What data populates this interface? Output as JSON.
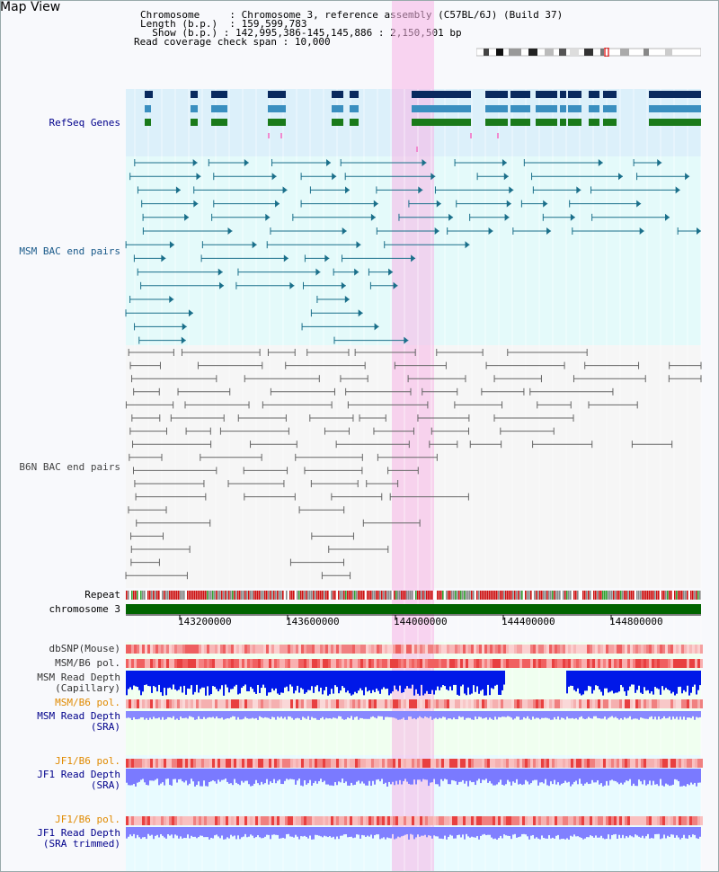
{
  "title": "Map View",
  "header": {
    "chromosome_label": "Chromosome",
    "chromosome_value": "Chromosome 3, reference assembly (C57BL/6J) (Build 37)",
    "length_label": "Length (b.p.)",
    "length_value": "159,599,783",
    "show_label": "Show (b.p.)",
    "show_value": "142,995,386-145,145,886 : 2,150,501 bp",
    "coverage_label": "Read coverage check span",
    "coverage_value": "10,000"
  },
  "tracks": {
    "refseq": "RefSeq Genes",
    "msm_bac": "MSM BAC end pairs",
    "b6n_bac": "B6N BAC end pairs",
    "repeat": "Repeat",
    "chromosome": "chromosome 3",
    "dbsnp": "dbSNP(Mouse)",
    "msm_b6_pol_1": "MSM/B6 pol.",
    "msm_read_depth_cap_1": "MSM Read Depth",
    "msm_read_depth_cap_2": "(Capillary)",
    "msm_b6_pol_2": "MSM/B6 pol.",
    "msm_read_depth_sra_1": "MSM Read Depth",
    "msm_read_depth_sra_2": "(SRA)",
    "jf1_b6_pol_1": "JF1/B6 pol.",
    "jf1_read_depth_sra_1": "JF1 Read Depth",
    "jf1_read_depth_sra_2": "(SRA)",
    "jf1_b6_pol_2": "JF1/B6 pol.",
    "jf1_read_depth_trim_1": "JF1 Read Depth",
    "jf1_read_depth_trim_2": "(SRA trimmed)"
  },
  "axis_ticks": [
    "143200000",
    "143600000",
    "144000000",
    "144400000",
    "144800000"
  ],
  "colors": {
    "refseq_bg": "#dcf0fa",
    "msm_bg": "#e4fafa",
    "gene_dark": "#0a2a5e",
    "gene_mid": "#3a8fc0",
    "gene_green": "#1a7a1a",
    "msm_line": "#1a6f8a",
    "b6n_line": "#666666",
    "chromosome": "#006400",
    "highlight": "#f7b6e6",
    "depth_blue": "#0018e8",
    "depth_light": "#7a7aff",
    "label_blue": "#00008b",
    "label_orange": "#e08a00"
  }
}
